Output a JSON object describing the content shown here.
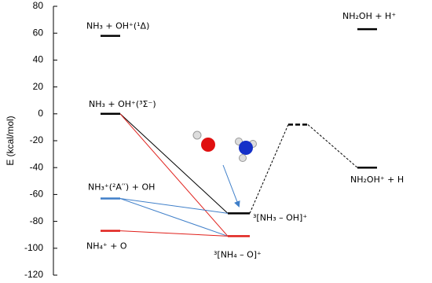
{
  "chart_data": {
    "type": "energy-diagram",
    "ylabel": "E (kcal/mol)",
    "ylim": [
      -120,
      80
    ],
    "yticks": [
      -120,
      -100,
      -80,
      -60,
      -40,
      -20,
      0,
      20,
      40,
      60,
      80
    ],
    "levels": [
      {
        "label": "NH₃ + OH⁺(¹Δ)",
        "energy": 58,
        "color": "#000000"
      },
      {
        "label": "NH₃ + OH⁺(³Σ⁻)",
        "energy": 0,
        "color": "#000000"
      },
      {
        "label": "NH₃⁺(²A′′) + OH",
        "energy": -63,
        "color": "#3f7fc9"
      },
      {
        "label": "NH₄⁺ + O",
        "energy": -87,
        "color": "#e0201b"
      },
      {
        "label": "³[NH₃ – OH]⁺",
        "energy": -74,
        "color": "#000000"
      },
      {
        "label": "³[NH₄ – O]⁺",
        "energy": -91,
        "color": "#e0201b"
      },
      {
        "energy": -8,
        "color": "#000000",
        "dashed": true
      },
      {
        "label": "NH₂OH⁺ + H",
        "energy": -40,
        "color": "#000000"
      },
      {
        "label": "NH₂OH + H⁺",
        "energy": 63,
        "color": "#000000"
      }
    ]
  }
}
